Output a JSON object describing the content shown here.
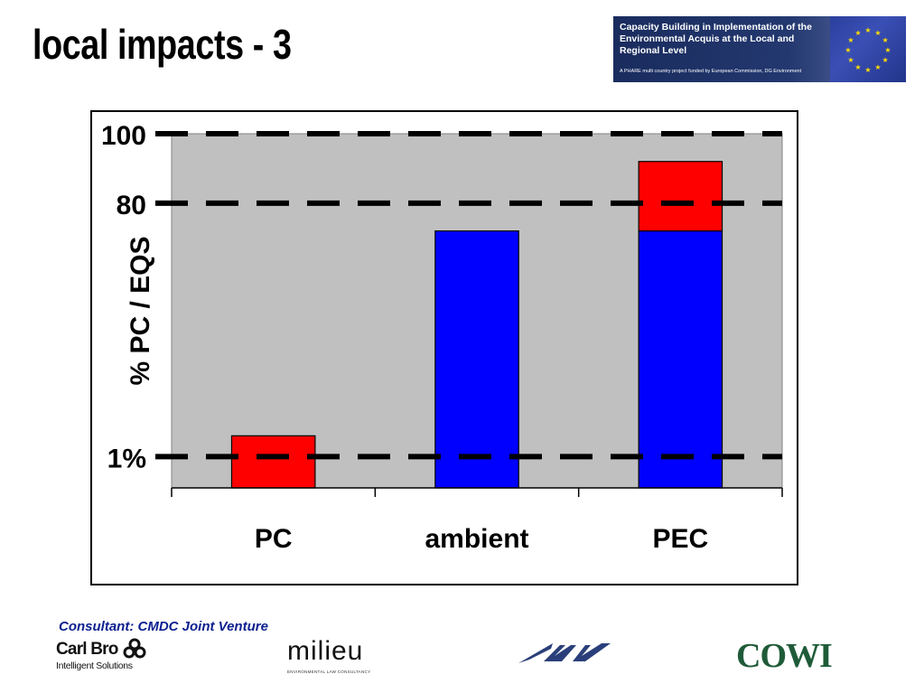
{
  "slide": {
    "title": "local impacts - 3"
  },
  "banner": {
    "title": "Capacity Building in Implementation of the Environmental Acquis at the Local and Regional Level",
    "subtitle": "A PHARE multi country project funded by European Commission, DG Environment"
  },
  "chart_data": {
    "type": "bar",
    "stacked": true,
    "categories": [
      "PC",
      "ambient",
      "PEC"
    ],
    "series": [
      {
        "values": [
          0,
          74,
          74
        ],
        "color": "#0000ff"
      },
      {
        "values": [
          15,
          0,
          20
        ],
        "color": "#ff0000"
      }
    ],
    "ylabel": "% PC / EQS",
    "reference_lines": [
      {
        "label": "100",
        "value": 100
      },
      {
        "label": "80",
        "value": 80
      },
      {
        "label": "1%",
        "value": 7
      }
    ],
    "ylim": [
      -2,
      100
    ],
    "plot_background": "#c0c0c0",
    "legend": "none"
  },
  "footer": {
    "consultant": "Consultant: CMDC Joint Venture",
    "logos": {
      "carlbro": {
        "name": "Carl Bro",
        "tagline": "Intelligent Solutions"
      },
      "milieu": {
        "name": "milieu",
        "tagline": "ENVIRONMENTAL LAW CONSULTANCY"
      },
      "dhv": {
        "name": "DHV"
      },
      "cowi": {
        "name": "COWI"
      }
    }
  }
}
